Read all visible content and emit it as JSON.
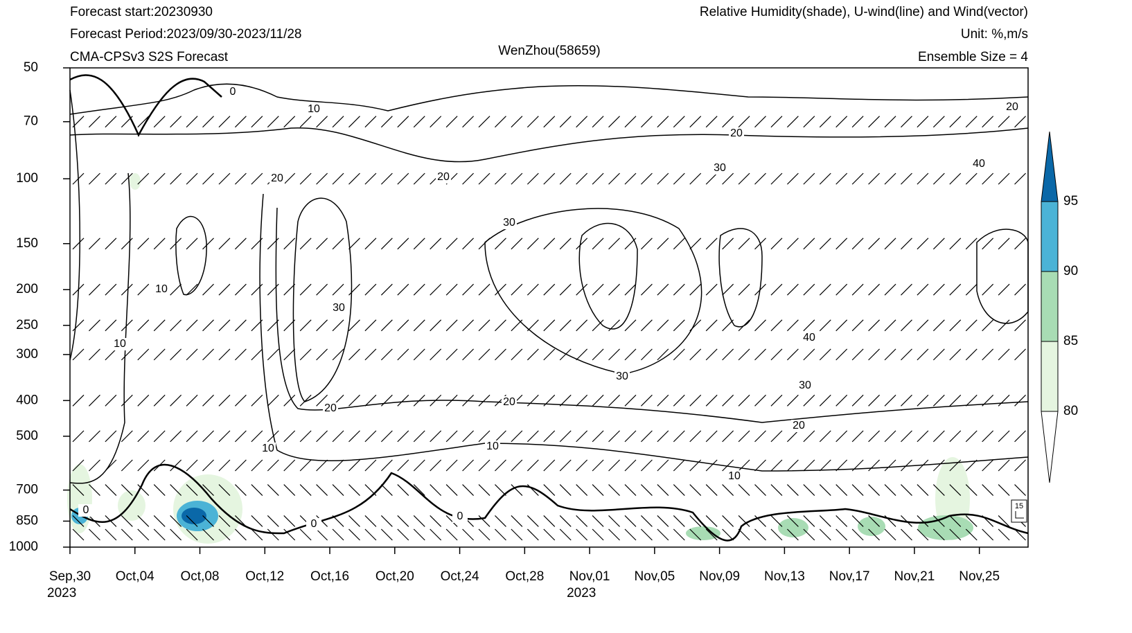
{
  "header": {
    "left": [
      "Forecast start:20230930",
      "Forecast Period:2023/09/30-2023/11/28",
      "CMA-CPSv3 S2S Forecast"
    ],
    "right": [
      "Relative Humidity(shade), U-wind(line) and Wind(vector)",
      "Unit: %,m/s",
      "Ensemble Size = 4"
    ]
  },
  "chart_data": {
    "type": "contour",
    "title": "WenZhou(58659)",
    "xlim": [
      "2023-09-30",
      "2023-11-28"
    ],
    "xticks": [
      {
        "value": "2023-09-30",
        "label": "Sep,30",
        "year": "2023"
      },
      {
        "value": "2023-10-04",
        "label": "Oct,04"
      },
      {
        "value": "2023-10-08",
        "label": "Oct,08"
      },
      {
        "value": "2023-10-12",
        "label": "Oct,12"
      },
      {
        "value": "2023-10-16",
        "label": "Oct,16"
      },
      {
        "value": "2023-10-20",
        "label": "Oct,20"
      },
      {
        "value": "2023-10-24",
        "label": "Oct,24"
      },
      {
        "value": "2023-10-28",
        "label": "Oct,28"
      },
      {
        "value": "2023-11-01",
        "label": "Nov,01",
        "year": "2023"
      },
      {
        "value": "2023-11-05",
        "label": "Nov,05"
      },
      {
        "value": "2023-11-09",
        "label": "Nov,09"
      },
      {
        "value": "2023-11-13",
        "label": "Nov,13"
      },
      {
        "value": "2023-11-17",
        "label": "Nov,17"
      },
      {
        "value": "2023-11-21",
        "label": "Nov,21"
      },
      {
        "value": "2023-11-25",
        "label": "Nov,25"
      }
    ],
    "yscale": "log",
    "ylim": [
      1000,
      50
    ],
    "yticks": [
      50,
      70,
      100,
      150,
      200,
      250,
      300,
      400,
      500,
      700,
      850,
      1000
    ],
    "contour_levels": [
      0,
      10,
      20,
      30,
      40
    ],
    "contour_labels": [
      0,
      10,
      20,
      20,
      30,
      40,
      20,
      20,
      30,
      10,
      10,
      30,
      30,
      40,
      30,
      20,
      20,
      20,
      10,
      10,
      10,
      0,
      0,
      0
    ],
    "colorbar": {
      "levels": [
        80,
        85,
        90,
        95
      ],
      "colors": [
        "#ffffff",
        "#e5f5e0",
        "#a8dcb4",
        "#4bb3d6",
        "#0a68a8"
      ]
    },
    "vector_reference": 15
  }
}
